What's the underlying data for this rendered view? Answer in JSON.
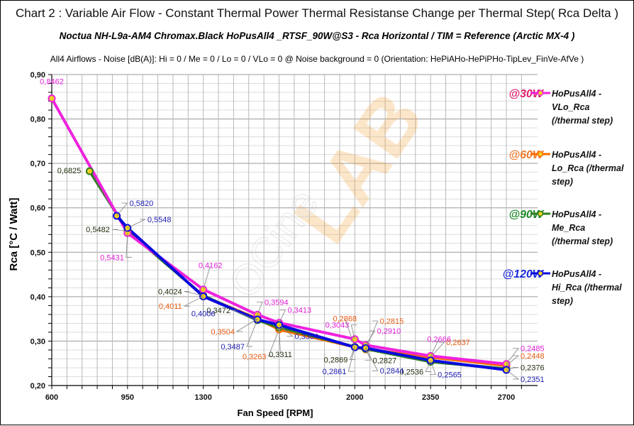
{
  "chart_data": {
    "type": "line",
    "title": "Chart 2 : Variable Air Flow - Constant Thermal Power  Thermal Resistanse Change per Thermal Step( Rca  Delta )",
    "subtitle": "Noctua NH-L9a-AM4 Chromax.Black  HoPusAll4 _RTSF_90W@S3  -  Rca Horizontal    /  TIM =  Reference   (Arctic MX-4 )",
    "note": "All4  Airflows  - Noise  [dB(A)]: Hi = 0 / Me = 0 / Lo = 0 / VLo = 0 @ Noise background = 0    (Orientation: HePiAHo-HePiPHo-TipLev_FinVe-AfVe  )",
    "xlabel": "Fan Speed  [RPM]",
    "ylabel": "Rca   [°C / Watt]",
    "xlim": [
      600,
      2800
    ],
    "ylim": [
      0.2,
      0.9
    ],
    "xticks": [
      600,
      950,
      1300,
      1650,
      2000,
      2350,
      2700
    ],
    "xtick_labels": [
      "600",
      "950",
      "1300",
      "1650",
      "2000",
      "2350",
      "2700"
    ],
    "yticks": [
      0.2,
      0.3,
      0.4,
      0.5,
      0.6,
      0.7,
      0.8,
      0.9
    ],
    "ytick_labels": [
      "0,20",
      "0,30",
      "0,40",
      "0,50",
      "0,60",
      "0,70",
      "0,80",
      "0,90"
    ],
    "grid": true,
    "legend_position": "right",
    "watermark": "OCinside LAB",
    "series": [
      {
        "name": "HoPusAll4 - VLo_Rca (/thermal step)",
        "power": "@30W",
        "color": "#ee22dd",
        "label_color": "#e020d8",
        "watt_color": "#e0206e",
        "x": [
          600,
          950,
          1300,
          1550,
          1650,
          2000,
          2050,
          2350,
          2700
        ],
        "y": [
          0.8462,
          0.5431,
          0.4162,
          0.3594,
          0.3413,
          0.3043,
          0.291,
          0.2666,
          0.2485
        ],
        "labels": [
          "0,8462",
          "0,5431",
          "0,4162",
          "0,3594",
          "0,3413",
          "0,3043",
          "0,2910",
          "0,2666",
          "0,2485"
        ]
      },
      {
        "name": "HoPusAll4 - Lo_Rca (/thermal step)",
        "power": "@60W",
        "color": "#ff6a00",
        "label_color": "#e85a10",
        "watt_color": "#ef7a2a",
        "x": [
          1300,
          1550,
          1650,
          2000,
          2050,
          2350,
          2700
        ],
        "y": [
          0.4011,
          0.3504,
          0.3263,
          0.2868,
          0.2815,
          0.2637,
          0.2448
        ],
        "labels": [
          "0,4011",
          "0,3504",
          "0,3263",
          "0,2868",
          "0,2815",
          "0,2637",
          "0,2448"
        ]
      },
      {
        "name": "HoPusAll4 - Me_Rca (/thermal step)",
        "power": "@90W",
        "color": "#2e7d20",
        "label_color": "#1c2a0a",
        "watt_color": "#1f8a2a",
        "x": [
          775,
          950,
          1300,
          1550,
          1650,
          2000,
          2050,
          2350,
          2700
        ],
        "y": [
          0.6825,
          0.5482,
          0.4024,
          0.3472,
          0.3311,
          0.2869,
          0.2827,
          0.2536,
          0.2376
        ],
        "labels": [
          "0,6825",
          "0,5482",
          "0,4024",
          "0,3472",
          "0,3311",
          "0,2869",
          "0,2827",
          "0,2536",
          "0,2376"
        ]
      },
      {
        "name": "HoPusAll4 - Hi_Rca (/thermal step)",
        "power": "@120W",
        "color": "#0a0ae0",
        "label_color": "#1a1ab0",
        "watt_color": "#1a2ad8",
        "x": [
          900,
          950,
          1300,
          1550,
          1650,
          2000,
          2050,
          2350,
          2700
        ],
        "y": [
          0.582,
          0.5548,
          0.4006,
          0.3487,
          0.3364,
          0.2861,
          0.2844,
          0.2565,
          0.2351
        ],
        "labels": [
          "0,5820",
          "0,5548",
          "0,4006",
          "0,3487",
          "0,3364",
          "0,2861",
          "0,2844",
          "0,2565",
          "0,2351"
        ]
      }
    ],
    "legend": [
      {
        "power": "@30W",
        "line1": "HoPusAll4 -",
        "line2": "VLo_Rca",
        "line3": "(/thermal step)"
      },
      {
        "power": "@60W",
        "line1": "HoPusAll4 -",
        "line2": "Lo_Rca (/thermal",
        "line3": "step)"
      },
      {
        "power": "@90W",
        "line1": "HoPusAll4 -",
        "line2": "Me_Rca",
        "line3": "(/thermal step)"
      },
      {
        "power": "@120W",
        "line1": "HoPusAll4 -",
        "line2": "Hi_Rca (/thermal",
        "line3": "step)"
      }
    ]
  }
}
